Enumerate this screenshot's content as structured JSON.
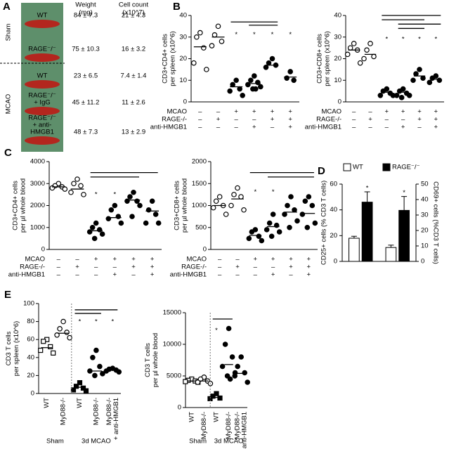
{
  "chart_data": [
    {
      "type": "table",
      "panel": "A",
      "headers": [
        [
          "Weight",
          "(mg)"
        ],
        [
          "Cell count",
          "(x10^7)"
        ]
      ],
      "groups": [
        {
          "name": "Sham",
          "rows": [
            {
              "label": [
                "WT"
              ],
              "weight": "84 ± 7.3",
              "count": "21 ± 4.3"
            },
            {
              "label": [
                "RAGE⁻/⁻"
              ],
              "weight": "75 ± 10.3",
              "count": "16 ± 3.2"
            }
          ]
        },
        {
          "name": "MCAO",
          "rows": [
            {
              "label": [
                "WT"
              ],
              "weight": "23 ± 6.5",
              "count": "7.4 ± 1.4"
            },
            {
              "label": [
                "RAGE⁻/⁻",
                "+ IgG"
              ],
              "weight": "45 ± 11.2",
              "count": "11 ± 2.6"
            },
            {
              "label": [
                "RAGE⁻/⁻",
                "+ anti-",
                "HMGB1"
              ],
              "weight": "48 ± 7.3",
              "count": "13 ± 2.9"
            }
          ]
        }
      ]
    },
    {
      "type": "dotplot",
      "panel": "B",
      "ylabel": [
        "CD3+CD4+ cells",
        "per spleen (x10^6)"
      ],
      "ylim": [
        0,
        40
      ],
      "yticks": [
        0,
        10,
        20,
        30,
        40
      ],
      "color": "#000",
      "groups": [
        {
          "marker": "open-circle",
          "points": [
            32,
            30,
            25,
            18,
            15
          ],
          "mean": 25.5
        },
        {
          "marker": "open-circle",
          "points": [
            35,
            31,
            28,
            26
          ],
          "mean": 30
        },
        {
          "marker": "filled-circle",
          "points": [
            10,
            8,
            6,
            5,
            3
          ],
          "mean": 7
        },
        {
          "marker": "filled-circle",
          "points": [
            12,
            10,
            9,
            8,
            7,
            6,
            6
          ],
          "mean": 8.5
        },
        {
          "marker": "filled-circle",
          "points": [
            20,
            18,
            17,
            16
          ],
          "mean": 17
        },
        {
          "marker": "filled-circle",
          "points": [
            14,
            11,
            10
          ],
          "mean": 11.5
        }
      ],
      "stars": [
        {
          "group": 2,
          "y": 32,
          "text": "*"
        },
        {
          "group": 3,
          "y": 32,
          "text": "*"
        },
        {
          "group": 4,
          "y": 32,
          "text": "*"
        },
        {
          "group": 5,
          "y": 32,
          "text": "*"
        }
      ],
      "brackets": [
        {
          "from": 2,
          "to": 4,
          "y": 37
        },
        {
          "from": 3,
          "to": 4,
          "y": 35.5
        }
      ],
      "conditions": [
        {
          "label": "MCAO",
          "signs": [
            "–",
            "–",
            "+",
            "+",
            "+",
            "+"
          ]
        },
        {
          "label": "RAGE-/-",
          "signs": [
            "–",
            "+",
            "–",
            "–",
            "+",
            "+"
          ]
        },
        {
          "label": "anti-HMGB1",
          "signs": [
            "–",
            "–",
            "–",
            "+",
            "–",
            "+"
          ]
        }
      ]
    },
    {
      "type": "dotplot",
      "ylabel": [
        "CD3+CD8+ cells",
        "per spleen (x10^6)"
      ],
      "ylim": [
        0,
        40
      ],
      "yticks": [
        0,
        10,
        20,
        30,
        40
      ],
      "color": "#000",
      "groups": [
        {
          "marker": "open-circle",
          "points": [
            27,
            25,
            24,
            22,
            18
          ],
          "mean": 24
        },
        {
          "marker": "open-circle",
          "points": [
            27,
            24,
            21,
            20
          ],
          "mean": 22
        },
        {
          "marker": "filled-circle",
          "points": [
            6,
            5,
            4,
            3,
            3
          ],
          "mean": 4.5
        },
        {
          "marker": "filled-circle",
          "points": [
            6,
            5,
            4,
            3,
            3,
            2
          ],
          "mean": 4.5
        },
        {
          "marker": "filled-circle",
          "points": [
            15,
            13,
            11,
            10
          ],
          "mean": 12
        },
        {
          "marker": "filled-circle",
          "points": [
            12,
            11,
            10,
            9
          ],
          "mean": 10.5
        }
      ],
      "stars": [
        {
          "group": 2,
          "y": 30,
          "text": "*"
        },
        {
          "group": 3,
          "y": 30,
          "text": "*"
        },
        {
          "group": 4,
          "y": 30,
          "text": "*"
        },
        {
          "group": 5,
          "y": 30,
          "text": "*"
        }
      ],
      "brackets": [
        {
          "from": 2,
          "to": 5,
          "y": 40
        },
        {
          "from": 2,
          "to": 4,
          "y": 38
        },
        {
          "from": 3,
          "to": 5,
          "y": 36
        },
        {
          "from": 3,
          "to": 4,
          "y": 34
        }
      ],
      "conditions": [
        {
          "label": "MCAO",
          "signs": [
            "–",
            "–",
            "+",
            "+",
            "+",
            "+"
          ]
        },
        {
          "label": "RAGE-/-",
          "signs": [
            "–",
            "+",
            "–",
            "–",
            "+",
            "+"
          ]
        },
        {
          "label": "anti-HMGB1",
          "signs": [
            "–",
            "–",
            "–",
            "+",
            "–",
            "+"
          ]
        }
      ]
    },
    {
      "type": "dotplot",
      "panel": "C",
      "ylabel": [
        "CD3+CD4+ cells",
        "per µl whole blood"
      ],
      "ylim": [
        0,
        4000
      ],
      "yticks": [
        0,
        1000,
        2000,
        3000,
        4000
      ],
      "color": "#000",
      "groups": [
        {
          "marker": "open-circle",
          "points": [
            3000,
            2900,
            2850,
            2800,
            2750
          ],
          "mean": 2850
        },
        {
          "marker": "open-circle",
          "points": [
            3200,
            3000,
            2900,
            2600,
            2500
          ],
          "mean": 2750
        },
        {
          "marker": "filled-circle",
          "points": [
            1200,
            1000,
            900,
            800,
            700,
            500
          ],
          "mean": 850
        },
        {
          "marker": "filled-circle",
          "points": [
            2000,
            1800,
            1500,
            1400,
            1200
          ],
          "mean": 1450
        },
        {
          "marker": "filled-circle",
          "points": [
            2600,
            2400,
            2200,
            2200,
            2000,
            1500
          ],
          "mean": 2250
        },
        {
          "marker": "filled-circle",
          "points": [
            2200,
            1800,
            1600,
            1200,
            1200
          ],
          "mean": 1750
        }
      ],
      "stars": [
        {
          "group": 2,
          "y": 2600,
          "text": "*"
        },
        {
          "group": 3,
          "y": 2600,
          "text": "*"
        }
      ],
      "brackets": [
        {
          "from": 2,
          "to": 5,
          "y": 3500
        },
        {
          "from": 2,
          "to": 4,
          "y": 3300
        }
      ],
      "conditions": [
        {
          "label": "MCAO",
          "signs": [
            "–",
            "–",
            "+",
            "+",
            "+",
            "+"
          ]
        },
        {
          "label": "RAGE-/-",
          "signs": [
            "–",
            "+",
            "–",
            "–",
            "+",
            "+"
          ]
        },
        {
          "label": "anti-HMGB1",
          "signs": [
            "–",
            "–",
            "–",
            "+",
            "–",
            "+"
          ]
        }
      ]
    },
    {
      "type": "dotplot",
      "ylabel": [
        "CD3+CD8+ cells",
        "per µl whole blood"
      ],
      "ylim": [
        0,
        2000
      ],
      "yticks": [
        0,
        500,
        1000,
        1500,
        2000
      ],
      "color": "#000",
      "groups": [
        {
          "marker": "open-circle",
          "points": [
            1200,
            1100,
            1000,
            950,
            800
          ],
          "mean": 1000
        },
        {
          "marker": "open-circle",
          "points": [
            1400,
            1250,
            1200,
            1000,
            900
          ],
          "mean": 1150
        },
        {
          "marker": "filled-circle",
          "points": [
            450,
            400,
            300,
            250,
            200
          ],
          "mean": 320
        },
        {
          "marker": "filled-circle",
          "points": [
            800,
            600,
            550,
            450,
            400,
            300
          ],
          "mean": 520
        },
        {
          "marker": "filled-circle",
          "points": [
            1200,
            1000,
            900,
            800,
            650,
            500
          ],
          "mean": 850
        },
        {
          "marker": "filled-circle",
          "points": [
            1200,
            1100,
            1000,
            800,
            600,
            500
          ],
          "mean": 820
        }
      ],
      "stars": [
        {
          "group": 2,
          "y": 1350,
          "text": "*"
        },
        {
          "group": 3,
          "y": 1350,
          "text": "*"
        }
      ],
      "brackets": [
        {
          "from": 2,
          "to": 5,
          "y": 1750
        },
        {
          "from": 3,
          "to": 5,
          "y": 1650
        }
      ],
      "conditions": [
        {
          "label": "MCAO",
          "signs": [
            "–",
            "–",
            "+",
            "+",
            "+",
            "+"
          ]
        },
        {
          "label": "RAGE-/-",
          "signs": [
            "–",
            "+",
            "–",
            "–",
            "+",
            "+"
          ]
        },
        {
          "label": "anti-HMGB1",
          "signs": [
            "–",
            "–",
            "–",
            "+",
            "–",
            "+"
          ]
        }
      ]
    },
    {
      "type": "bar",
      "panel": "D",
      "ylabel": "CD25+ cells (% CD3 T cells)",
      "y2label": "CD69+ cells (%CD3 T cells)",
      "ylim": [
        0,
        60
      ],
      "yticks": [
        0,
        20,
        40,
        60
      ],
      "y2lim": [
        0,
        50
      ],
      "y2ticks": [
        0,
        10,
        20,
        30,
        40,
        50
      ],
      "category_axes": [
        "y",
        "y2"
      ],
      "series": [
        {
          "name": "WT",
          "color": "#ffffff",
          "values": [
            18,
            9
          ],
          "errors": [
            1.5,
            1.5
          ]
        },
        {
          "name": "RAGE⁻/⁻",
          "color": "#000000",
          "values": [
            46,
            33
          ],
          "errors": [
            8,
            9
          ]
        }
      ],
      "stars": [
        {
          "series": 1,
          "category": 0,
          "text": "*"
        },
        {
          "series": 1,
          "category": 1,
          "text": "*"
        }
      ]
    },
    {
      "type": "dotplot",
      "panel": "E",
      "ylabel": [
        "CD3 T cells",
        "per spleen (x10^6)"
      ],
      "ylim": [
        0,
        100
      ],
      "yticks": [
        0,
        20,
        40,
        60,
        80,
        100
      ],
      "color": "#000",
      "categories": [
        [
          "WT"
        ],
        [
          "MyD88-/-"
        ],
        [
          "WT"
        ],
        [
          "MyD88-/-"
        ],
        [
          "MyD88-/-",
          "+ anti-HMGB1"
        ]
      ],
      "groups": [
        {
          "marker": "open-square",
          "points": [
            60,
            58,
            52,
            48,
            45
          ],
          "mean": 51
        },
        {
          "marker": "open-circle",
          "points": [
            80,
            72,
            68,
            65,
            62
          ],
          "mean": 67
        },
        {
          "marker": "filled-square",
          "points": [
            12,
            8,
            6,
            4,
            3
          ],
          "mean": 7
        },
        {
          "marker": "filled-circle",
          "points": [
            48,
            40,
            30,
            25,
            22,
            20
          ],
          "mean": 25
        },
        {
          "marker": "filled-circle",
          "points": [
            28,
            27,
            26,
            25,
            24
          ],
          "mean": 26
        }
      ],
      "stars": [
        {
          "group": 2,
          "y": 82,
          "text": "*"
        },
        {
          "group": 3,
          "y": 82,
          "text": "*"
        },
        {
          "group": 4,
          "y": 82,
          "text": "*"
        }
      ],
      "brackets": [
        {
          "from": 2,
          "to": 4,
          "y": 93
        },
        {
          "from": 2,
          "to": 3,
          "y": 89
        }
      ],
      "group_labels": [
        {
          "text": "Sham",
          "from": 0,
          "to": 1
        },
        {
          "text": "3d MCAO",
          "from": 2,
          "to": 4
        }
      ]
    },
    {
      "type": "dotplot",
      "ylabel": [
        "CD3 T cells",
        "per µl whole blood"
      ],
      "ylim": [
        0,
        15000
      ],
      "yticks": [
        0,
        5000,
        10000,
        15000
      ],
      "color": "#000",
      "categories": [
        [
          "WT"
        ],
        [
          "MyD88-/-"
        ],
        [
          "WT"
        ],
        [
          "MyD88-/-"
        ],
        [
          "MyD88-/-",
          "+ anti-HMGB1"
        ]
      ],
      "groups": [
        {
          "marker": "open-square",
          "points": [
            4500,
            4300,
            4200,
            4100,
            4000
          ],
          "mean": 4200
        },
        {
          "marker": "open-circle",
          "points": [
            4800,
            4500,
            4200,
            4000,
            3800
          ],
          "mean": 4200
        },
        {
          "marker": "filled-square",
          "points": [
            2200,
            1800,
            1500,
            1400
          ],
          "mean": 1600
        },
        {
          "marker": "filled-circle",
          "points": [
            12500,
            10000,
            8000,
            6500,
            5500,
            5000,
            4500
          ],
          "mean": 6800
        },
        {
          "marker": "filled-circle",
          "points": [
            8000,
            6500,
            5500,
            5000,
            4000
          ],
          "mean": 5400
        }
      ],
      "stars": [
        {
          "group": 2,
          "y": 12500,
          "text": "*"
        }
      ],
      "brackets": [
        {
          "from": 2,
          "to": 3,
          "y": 14000
        }
      ],
      "group_labels": [
        {
          "text": "Sham",
          "from": 0,
          "to": 1
        },
        {
          "text": "3d MCAO",
          "from": 2,
          "to": 4
        }
      ]
    }
  ]
}
